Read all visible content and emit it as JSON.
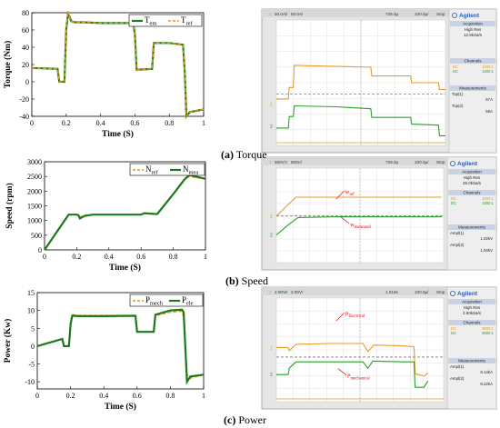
{
  "captions": {
    "torque": [
      "(a)",
      " Torque"
    ],
    "speed": [
      "(b)",
      " Speed"
    ],
    "power": [
      "(c)",
      " Power"
    ]
  },
  "scope": {
    "brand": "Agilent",
    "acq_title": "Acquisition",
    "acq_mode": "High Res",
    "channels_title": "Channels",
    "meas_title": "Measurements",
    "torque": {
      "top": [
        "1",
        "50.0A/",
        "2",
        "50.0A/",
        "728.0µ",
        "100.0µ/",
        "Stop",
        "500µ"
      ],
      "acq_rate": "12.5kSa/s",
      "channels": [
        "DC",
        "1000:1",
        "DC",
        "1000:1"
      ],
      "measures": [
        [
          "Top(1)",
          "67A"
        ],
        [
          "Top(2)",
          "56A"
        ]
      ]
    },
    "speed": {
      "top": [
        "1",
        "500V/",
        "2",
        "500V/",
        "728.0µ",
        "100.0µ/",
        "Stop",
        "6.20V"
      ],
      "acq_rate": "25.0kSa/s",
      "channels": [
        "DC",
        "1000:1",
        "DC",
        "1000:1"
      ],
      "measures": [
        [
          "Ampl(1)",
          "1.02kV"
        ],
        [
          "Ampl(2)",
          "1.04kV"
        ]
      ],
      "labels": [
        "w",
        "ref",
        "w",
        "measured"
      ]
    },
    "power": {
      "top": [
        "1",
        "2.00V/",
        "2",
        "2.00V/",
        "1.016s",
        "100.0µ/",
        "Stop",
        "31.0A"
      ],
      "acq_rate": "2.50kSa/s",
      "channels": [
        "DC",
        "8000:1",
        "DC",
        "8000:1"
      ],
      "measures": [
        [
          "Ampl(1)",
          "8.14kA"
        ],
        [
          "Ampl(2)",
          "8.22kA"
        ]
      ],
      "labels": [
        "P",
        "Electrical",
        "P",
        "mechanical"
      ]
    }
  },
  "chart_data": [
    {
      "type": "line",
      "xlabel": "Time (S)",
      "ylabel": "Torque (Nm)",
      "xlim": [
        0,
        1
      ],
      "ylim": [
        -40,
        80
      ],
      "xticks": [
        0,
        0.2,
        0.4,
        0.6,
        0.8,
        1
      ],
      "yticks": [
        -40,
        -20,
        0,
        20,
        40,
        60,
        80
      ],
      "legend": "top-right",
      "series": [
        {
          "name": [
            "T",
            "em"
          ],
          "color": "#1b7a1b",
          "x": [
            0,
            0.15,
            0.16,
            0.19,
            0.2,
            0.21,
            0.22,
            0.23,
            0.25,
            0.3,
            0.4,
            0.5,
            0.59,
            0.6,
            0.61,
            0.7,
            0.71,
            0.8,
            0.88,
            0.89,
            0.9,
            0.92,
            1
          ],
          "y": [
            16,
            15,
            0,
            0,
            60,
            78,
            75,
            70,
            69,
            69,
            68,
            68,
            68,
            55,
            14,
            15,
            45,
            45,
            43,
            12,
            -40,
            -35,
            -32
          ]
        },
        {
          "name": [
            "T",
            "ref"
          ],
          "color": "#e59a1c",
          "x": [
            0,
            0.15,
            0.16,
            0.19,
            0.2,
            0.21,
            0.22,
            0.23,
            0.25,
            0.3,
            0.4,
            0.5,
            0.59,
            0.6,
            0.61,
            0.7,
            0.71,
            0.8,
            0.88,
            0.89,
            0.9,
            0.92,
            1
          ],
          "y": [
            16,
            15,
            0,
            0,
            60,
            82,
            74,
            70,
            69,
            69,
            68,
            68,
            68,
            55,
            14,
            15,
            45,
            45,
            43,
            12,
            -40,
            -35,
            -32
          ]
        }
      ]
    },
    {
      "type": "line",
      "xlabel": "Time (S)",
      "ylabel": "Speed (rpm)",
      "xlim": [
        0,
        1
      ],
      "ylim": [
        0,
        3000
      ],
      "xticks": [
        0,
        0.2,
        0.4,
        0.6,
        0.8,
        1
      ],
      "yticks": [
        0,
        500,
        1000,
        1500,
        2000,
        2500,
        3000
      ],
      "legend": "top-right",
      "series": [
        {
          "name": [
            "N",
            "ref"
          ],
          "color": "#e59a1c",
          "x": [
            0,
            0.15,
            0.2,
            0.21,
            0.22,
            0.25,
            0.3,
            0.6,
            0.62,
            0.7,
            0.8,
            0.87,
            0.9,
            1
          ],
          "y": [
            0,
            1200,
            1200,
            1200,
            1120,
            1180,
            1200,
            1200,
            1250,
            1220,
            1900,
            2400,
            2500,
            2420
          ]
        },
        {
          "name": [
            "N",
            "mea"
          ],
          "color": "#1b7a1b",
          "x": [
            0,
            0.15,
            0.2,
            0.21,
            0.22,
            0.25,
            0.3,
            0.6,
            0.62,
            0.7,
            0.8,
            0.87,
            0.9,
            1
          ],
          "y": [
            0,
            1200,
            1200,
            1180,
            1070,
            1160,
            1200,
            1200,
            1250,
            1220,
            1900,
            2400,
            2550,
            2420
          ]
        }
      ]
    },
    {
      "type": "line",
      "xlabel": "Time (S)",
      "ylabel": "Power (Kw)",
      "xlim": [
        0,
        1
      ],
      "ylim": [
        -12,
        15
      ],
      "xticks": [
        0,
        0.2,
        0.4,
        0.6,
        0.8,
        1
      ],
      "yticks": [
        -10,
        -5,
        0,
        5,
        10,
        15
      ],
      "legend": "top-right",
      "series": [
        {
          "name": [
            "P",
            "mech"
          ],
          "color": "#e59a1c",
          "x": [
            0,
            0.15,
            0.16,
            0.19,
            0.2,
            0.21,
            0.22,
            0.25,
            0.4,
            0.59,
            0.6,
            0.7,
            0.71,
            0.8,
            0.87,
            0.88,
            0.9,
            0.92,
            1
          ],
          "y": [
            0,
            2,
            0,
            0,
            7,
            9,
            8.7,
            8.6,
            8.6,
            8.6,
            4,
            4,
            8.5,
            9.5,
            9.8,
            8,
            -8,
            -9,
            -8
          ]
        },
        {
          "name": [
            "P",
            "ele"
          ],
          "color": "#1b7a1b",
          "x": [
            0,
            0.15,
            0.16,
            0.19,
            0.2,
            0.21,
            0.22,
            0.25,
            0.4,
            0.59,
            0.6,
            0.7,
            0.71,
            0.8,
            0.87,
            0.88,
            0.9,
            0.92,
            1
          ],
          "y": [
            0,
            2,
            0,
            0,
            6,
            8.5,
            8.5,
            8.4,
            8.4,
            8.5,
            4,
            4,
            8.8,
            10,
            10.2,
            9.5,
            -10,
            -8.5,
            -8
          ]
        }
      ]
    }
  ]
}
